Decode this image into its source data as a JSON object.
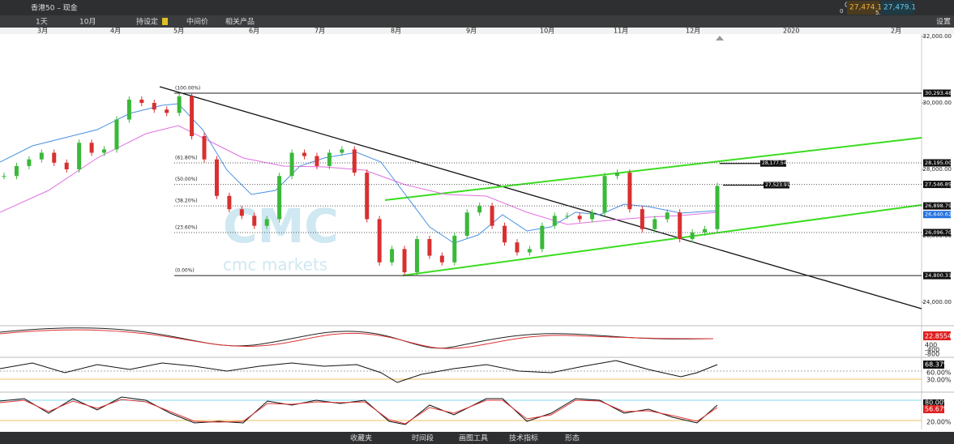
{
  "toolbar": {
    "instrument": "香港50 – 现金",
    "interval": "1天",
    "period": "10月",
    "presets": "持设定",
    "price_mode": "中间价",
    "related": "相关产品",
    "change": "0%",
    "change_sub": "0",
    "bid": "27,474.1",
    "ask": "27,479.1",
    "spread": "5.0",
    "settings": "设置"
  },
  "months": [
    "3月",
    "4月",
    "5月",
    "6月",
    "7月",
    "8月",
    "9月",
    "10月",
    "11月",
    "12月",
    "2020",
    "2月"
  ],
  "price_axis": {
    "ylim": [
      23340,
      32075
    ],
    "ticks": [
      {
        "value": 24000,
        "label": "24,000.00"
      },
      {
        "value": 26000,
        "label": "26,000.00"
      },
      {
        "value": 28000,
        "label": "28,000.00"
      },
      {
        "value": 30000,
        "label": "30,000.00"
      },
      {
        "value": 32000,
        "label": "32,000.00"
      }
    ]
  },
  "fib_levels": [
    {
      "label": "(100.00%)",
      "value": 30293.48,
      "value_label": "30,293.48"
    },
    {
      "label": "(61.80%)",
      "value": 28195.0,
      "value_label": "28,195.00"
    },
    {
      "label": "(50.00%)",
      "value": 27546.89,
      "value_label": "27,546.89"
    },
    {
      "label": "(38.20%)",
      "value": 26898.79,
      "value_label": "26,898.79"
    },
    {
      "label": "(23.60%)",
      "value": 26096.7,
      "value_label": "26,096.70"
    },
    {
      "label": "(0.00%)",
      "value": 24800.31,
      "value_label": "24,800.31"
    }
  ],
  "price_close": [
    27800,
    28100,
    28300,
    28500,
    28200,
    28000,
    28800,
    28500,
    28600,
    29500,
    30100,
    30000,
    29800,
    29700,
    30200,
    29000,
    28300,
    27200,
    26800,
    26600,
    26300,
    26500,
    27800,
    28500,
    28400,
    28100,
    28500,
    28600,
    27900,
    26500,
    25200,
    25600,
    24900,
    25900,
    25400,
    25200,
    26000,
    26700,
    26900,
    26300,
    25800,
    25500,
    25600,
    26300,
    26600,
    26600,
    26500,
    26700,
    27800,
    27900,
    26800,
    26200,
    26500,
    26700,
    25900,
    26100,
    26200,
    27500
  ],
  "markers": [
    {
      "value": 28177.54,
      "label": "28,177.54"
    },
    {
      "value": 27523.91,
      "label": "27,523.91"
    }
  ],
  "last_tag": {
    "value": 26640.62,
    "label": "26,640.62"
  },
  "watermark": "cmc markets",
  "macd": {
    "labels": [
      "400",
      "22.8554",
      "-400",
      "-800"
    ]
  },
  "rsi": {
    "labels": [
      "68.37%",
      "60.00%",
      "30.00%"
    ]
  },
  "stoch": {
    "labels": [
      "80.00%",
      "56.67%",
      "20.00%"
    ]
  },
  "bottom_bar": [
    "收藏夹",
    "时间段",
    "画图工具",
    "技术指标",
    "形态"
  ]
}
